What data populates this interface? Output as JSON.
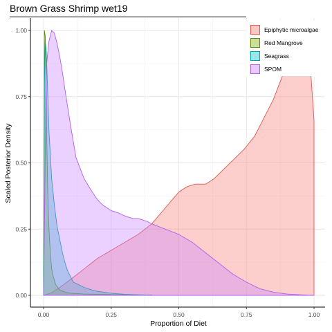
{
  "chart_data": {
    "type": "area",
    "title": "Brown Grass Shrimp wet19",
    "xlabel": "Proportion of Diet",
    "ylabel": "Scaled Posterior Density",
    "xlim": [
      0,
      1
    ],
    "ylim": [
      0,
      1
    ],
    "x_ticks": [
      "0.00",
      "0.25",
      "0.50",
      "0.75",
      "1.00"
    ],
    "y_ticks": [
      "0.00",
      "0.25",
      "0.50",
      "0.75",
      "1.00"
    ],
    "grid": true,
    "legend_position": "top-right",
    "series": [
      {
        "name": "Epiphytic microalgae",
        "fill": "#F8766D",
        "stroke": "#E0584D",
        "x": [
          0.0,
          0.03,
          0.06,
          0.1,
          0.15,
          0.2,
          0.25,
          0.3,
          0.35,
          0.4,
          0.45,
          0.5,
          0.53,
          0.56,
          0.6,
          0.63,
          0.66,
          0.7,
          0.74,
          0.78,
          0.82,
          0.85,
          0.88,
          0.9,
          0.92,
          0.94,
          0.96,
          0.98,
          1.0
        ],
        "y": [
          0.0,
          0.01,
          0.03,
          0.06,
          0.1,
          0.14,
          0.17,
          0.2,
          0.23,
          0.27,
          0.33,
          0.39,
          0.41,
          0.42,
          0.42,
          0.44,
          0.47,
          0.51,
          0.55,
          0.6,
          0.68,
          0.74,
          0.82,
          0.87,
          0.92,
          0.96,
          0.98,
          0.96,
          0.66
        ]
      },
      {
        "name": "Red Mangrove",
        "fill": "#7CAE00",
        "stroke": "#5E8C00",
        "x": [
          0.0,
          0.003,
          0.006,
          0.008,
          0.01,
          0.012,
          0.015,
          0.018,
          0.022,
          0.026,
          0.03,
          0.036,
          0.045,
          0.06,
          0.08,
          0.1,
          0.15,
          0.25,
          0.4
        ],
        "y": [
          0.0,
          1.0,
          0.98,
          0.9,
          0.75,
          0.58,
          0.42,
          0.3,
          0.21,
          0.15,
          0.1,
          0.07,
          0.04,
          0.02,
          0.012,
          0.008,
          0.005,
          0.003,
          0.001
        ]
      },
      {
        "name": "Seagrass",
        "fill": "#00BFC4",
        "stroke": "#00A3A8",
        "x": [
          0.0,
          0.003,
          0.006,
          0.01,
          0.015,
          0.02,
          0.03,
          0.04,
          0.05,
          0.06,
          0.07,
          0.08,
          0.09,
          0.1,
          0.11,
          0.12,
          0.13,
          0.15,
          0.18,
          0.2,
          0.25,
          0.3,
          0.35,
          0.4
        ],
        "y": [
          0.0,
          0.8,
          0.96,
          0.92,
          0.78,
          0.62,
          0.44,
          0.34,
          0.26,
          0.21,
          0.16,
          0.12,
          0.09,
          0.07,
          0.05,
          0.045,
          0.04,
          0.03,
          0.02,
          0.015,
          0.008,
          0.004,
          0.002,
          0.001
        ]
      },
      {
        "name": "SPOM",
        "fill": "#C77CFF",
        "stroke": "#B05EEA",
        "x": [
          0.0,
          0.01,
          0.02,
          0.03,
          0.04,
          0.05,
          0.06,
          0.07,
          0.08,
          0.1,
          0.12,
          0.15,
          0.18,
          0.2,
          0.22,
          0.25,
          0.28,
          0.3,
          0.33,
          0.35,
          0.38,
          0.4,
          0.45,
          0.5,
          0.55,
          0.6,
          0.65,
          0.7,
          0.75,
          0.8,
          0.85,
          0.9,
          0.95,
          1.0
        ],
        "y": [
          0.0,
          0.86,
          0.96,
          1.0,
          0.99,
          0.95,
          0.9,
          0.84,
          0.77,
          0.64,
          0.52,
          0.44,
          0.39,
          0.36,
          0.34,
          0.32,
          0.31,
          0.3,
          0.29,
          0.29,
          0.28,
          0.27,
          0.25,
          0.23,
          0.2,
          0.16,
          0.12,
          0.08,
          0.05,
          0.025,
          0.012,
          0.005,
          0.002,
          0.0
        ]
      }
    ]
  }
}
